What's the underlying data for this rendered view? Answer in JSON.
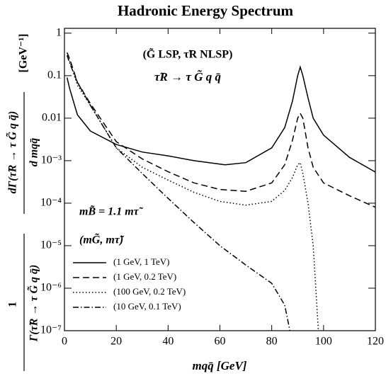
{
  "chart_data": {
    "type": "line",
    "title": "Hadronic Energy Spectrum",
    "x_label": "mqq̄ [GeV]",
    "y_label_parts": [
      "1",
      "Γ(τ̃R → τ G̃ q q̄)",
      "dΓ(τ̃R → τ G̃ q q̄)",
      "d mqq̄",
      "[GeV⁻¹]"
    ],
    "annotations": [
      "(G̃ LSP,   τ̃R NLSP)",
      "τ̃R → τ G̃ q q̄",
      "mB̃ = 1.1 mτ̃",
      "(mG̃, mτ̃)"
    ],
    "log_y": true,
    "xlim": [
      0,
      120
    ],
    "xticks": [
      0,
      20,
      40,
      60,
      80,
      100,
      120
    ],
    "ylim": [
      1e-07,
      1.3
    ],
    "yticks": [
      1,
      0.1,
      0.01,
      {
        "value": 0.001,
        "label": "10⁻³"
      },
      {
        "value": 0.0001,
        "label": "10⁻⁴"
      },
      {
        "value": 1e-05,
        "label": "10⁻⁵"
      },
      {
        "value": 1e-06,
        "label": "10⁻⁶"
      },
      {
        "value": 1e-07,
        "label": "10⁻⁷"
      }
    ],
    "legend": "lower left",
    "series": [
      {
        "name": "(1 GeV, 1 TeV)",
        "color": "#000000",
        "dash": "solid",
        "x": [
          1,
          2,
          5,
          10,
          20,
          30,
          40,
          50,
          62,
          70,
          80,
          85,
          88,
          90,
          91,
          92,
          94,
          96,
          100,
          110,
          120
        ],
        "values": [
          0.09,
          0.05,
          0.012,
          0.005,
          0.0024,
          0.0016,
          0.0013,
          0.001,
          0.0008,
          0.0009,
          0.002,
          0.006,
          0.025,
          0.1,
          0.16,
          0.1,
          0.03,
          0.01,
          0.004,
          0.0012,
          0.00054
        ]
      },
      {
        "name": "(1 GeV, 0.2 TeV)",
        "color": "#000000",
        "dash": "dashed",
        "x": [
          1,
          2,
          5,
          10,
          20,
          30,
          40,
          50,
          60,
          70,
          80,
          85,
          88,
          90,
          91,
          92,
          94,
          96,
          100,
          110,
          120
        ],
        "values": [
          0.35,
          0.25,
          0.07,
          0.022,
          0.0028,
          0.0011,
          0.00055,
          0.0003,
          0.00021,
          0.00019,
          0.0003,
          0.0008,
          0.003,
          0.01,
          0.013,
          0.01,
          0.002,
          0.0007,
          0.0003,
          0.00015,
          8e-05
        ]
      },
      {
        "name": "(100 GeV, 0.2 TeV)",
        "color": "#000000",
        "dash": "dotted",
        "x": [
          1,
          2,
          5,
          10,
          20,
          30,
          40,
          50,
          60,
          70,
          80,
          85,
          88,
          90,
          91,
          92,
          94,
          96,
          97,
          98
        ],
        "values": [
          0.3,
          0.22,
          0.06,
          0.02,
          0.002,
          0.0007,
          0.00035,
          0.00018,
          0.00011,
          9e-05,
          0.00011,
          0.0002,
          0.0004,
          0.0008,
          0.0009,
          0.0005,
          0.0001,
          1e-05,
          1e-06,
          1e-07
        ]
      },
      {
        "name": "(10 GeV, 0.1 TeV)",
        "color": "#000000",
        "dash": "dashdot",
        "x": [
          1,
          2,
          5,
          10,
          20,
          30,
          40,
          50,
          60,
          70,
          80,
          85,
          87
        ],
        "values": [
          0.3,
          0.2,
          0.07,
          0.02,
          0.002,
          0.0005,
          0.00013,
          3.5e-05,
          1e-05,
          3.5e-06,
          1.3e-06,
          4e-07,
          1e-07
        ]
      }
    ]
  }
}
